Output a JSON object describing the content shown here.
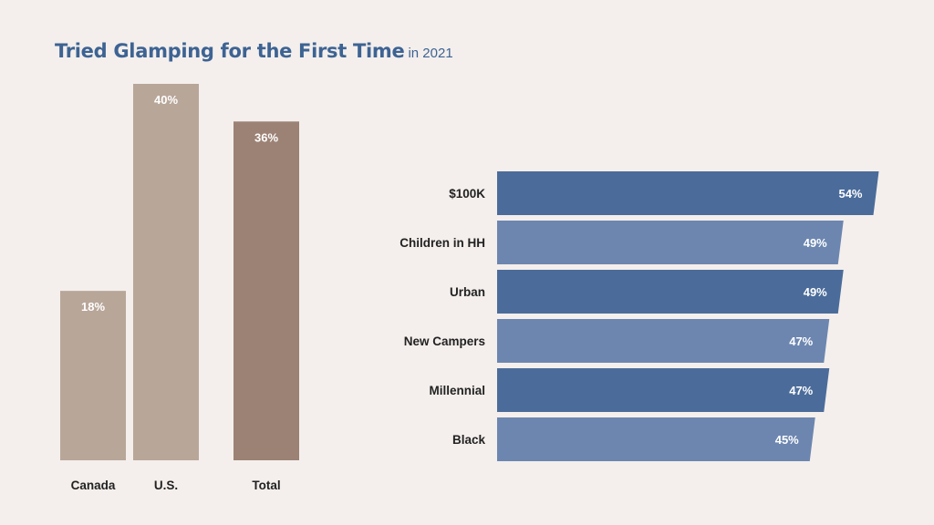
{
  "title": "Tried Glamping for the First Time",
  "subtitle": "in 2021",
  "colors": {
    "background": "#f4efec",
    "title": "#3d6393",
    "bar_light_tan": "#b8a699",
    "bar_dark_tan": "#9c8274",
    "bar_dark_blue": "#4b6c9a",
    "bar_light_blue": "#6c86b0"
  },
  "chart_data": [
    {
      "type": "bar",
      "orientation": "vertical",
      "categories": [
        "Canada",
        "U.S.",
        "Total"
      ],
      "values": [
        18,
        40,
        36
      ],
      "labels": [
        "18%",
        "40%",
        "36%"
      ],
      "unit": "%",
      "ylim": [
        0,
        40
      ],
      "grid": false,
      "legend": "none"
    },
    {
      "type": "bar",
      "orientation": "horizontal",
      "categories": [
        "$100K",
        "Children in HH",
        "Urban",
        "New Campers",
        "Millennial",
        "Black"
      ],
      "values": [
        54,
        49,
        49,
        47,
        47,
        45
      ],
      "labels": [
        "54%",
        "49%",
        "49%",
        "47%",
        "47%",
        "45%"
      ],
      "unit": "%",
      "grid": false,
      "legend": "none"
    }
  ]
}
